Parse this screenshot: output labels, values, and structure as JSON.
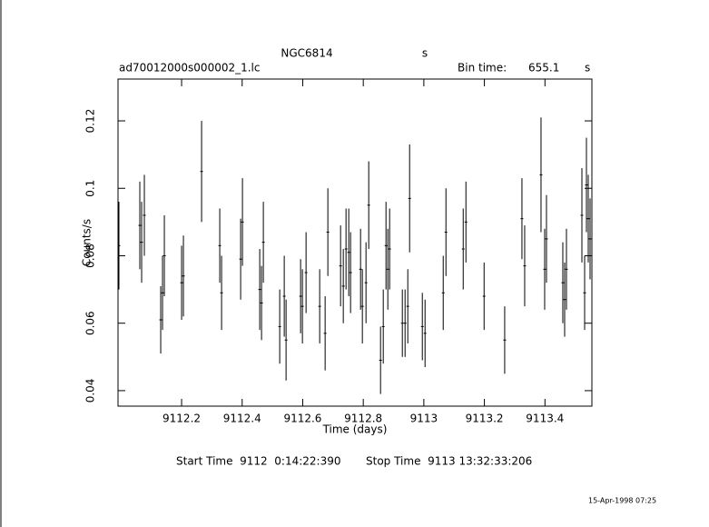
{
  "chart_data": {
    "type": "errorbar",
    "title": "NGC6814",
    "title_unit": "s",
    "file": "ad70012000s000002_1.lc",
    "bin_label": "Bin time:",
    "bin_value": "655.1",
    "bin_unit": "s",
    "xlabel": "Time (days)",
    "ylabel": "Counts/s",
    "start_time": "Start Time  9112  0:14:22:390",
    "stop_time": "Stop Time  9113 13:32:33:206",
    "stamp": "15-Apr-1998 07:25",
    "color": "#000000",
    "xlim": [
      9111.99,
      9113.555
    ],
    "ylim": [
      0.0354,
      0.1324
    ],
    "xticks": [
      9112.2,
      9112.4,
      9112.6,
      9112.8,
      9113,
      9113.2,
      9113.4
    ],
    "yticks": [
      0.04,
      0.06,
      0.08,
      0.1,
      0.12
    ],
    "x": [
      9111.993,
      9112.062,
      9112.068,
      9112.077,
      9112.131,
      9112.137,
      9112.143,
      9112.2,
      9112.206,
      9112.266,
      9112.326,
      9112.332,
      9112.395,
      9112.401,
      9112.458,
      9112.464,
      9112.47,
      9112.524,
      9112.539,
      9112.545,
      9112.593,
      9112.599,
      9112.611,
      9112.656,
      9112.674,
      9112.683,
      9112.725,
      9112.734,
      9112.743,
      9112.752,
      9112.758,
      9112.791,
      9112.797,
      9112.809,
      9112.818,
      9112.857,
      9112.866,
      9112.875,
      9112.881,
      9112.887,
      9112.929,
      9112.938,
      9112.947,
      9112.953,
      9112.995,
      9113.004,
      9113.064,
      9113.073,
      9113.13,
      9113.139,
      9113.199,
      9113.267,
      9113.324,
      9113.333,
      9113.387,
      9113.399,
      9113.405,
      9113.459,
      9113.465,
      9113.471,
      9113.522,
      9113.531,
      9113.537,
      9113.543,
      9113.549
    ],
    "values": [
      0.083,
      0.089,
      0.084,
      0.092,
      0.061,
      0.069,
      0.08,
      0.072,
      0.074,
      0.105,
      0.083,
      0.069,
      0.079,
      0.09,
      0.07,
      0.066,
      0.084,
      0.059,
      0.068,
      0.055,
      0.068,
      0.065,
      0.075,
      0.065,
      0.057,
      0.087,
      0.077,
      0.071,
      0.082,
      0.081,
      0.075,
      0.076,
      0.065,
      0.072,
      0.095,
      0.049,
      0.059,
      0.083,
      0.076,
      0.082,
      0.06,
      0.06,
      0.065,
      0.097,
      0.059,
      0.057,
      0.069,
      0.087,
      0.082,
      0.09,
      0.068,
      0.055,
      0.091,
      0.077,
      0.104,
      0.076,
      0.085,
      0.072,
      0.067,
      0.076,
      0.092,
      0.069,
      0.101,
      0.091,
      0.085
    ],
    "errors": [
      0.013,
      0.013,
      0.012,
      0.012,
      0.01,
      0.011,
      0.012,
      0.011,
      0.012,
      0.015,
      0.011,
      0.011,
      0.012,
      0.013,
      0.012,
      0.011,
      0.012,
      0.011,
      0.012,
      0.012,
      0.011,
      0.011,
      0.012,
      0.011,
      0.011,
      0.013,
      0.012,
      0.011,
      0.012,
      0.013,
      0.012,
      0.012,
      0.011,
      0.012,
      0.013,
      0.01,
      0.011,
      0.013,
      0.012,
      0.012,
      0.01,
      0.01,
      0.011,
      0.016,
      0.01,
      0.01,
      0.011,
      0.013,
      0.012,
      0.012,
      0.01,
      0.01,
      0.012,
      0.012,
      0.017,
      0.012,
      0.013,
      0.012,
      0.011,
      0.012,
      0.014,
      0.011,
      0.014,
      0.013,
      0.012
    ]
  }
}
